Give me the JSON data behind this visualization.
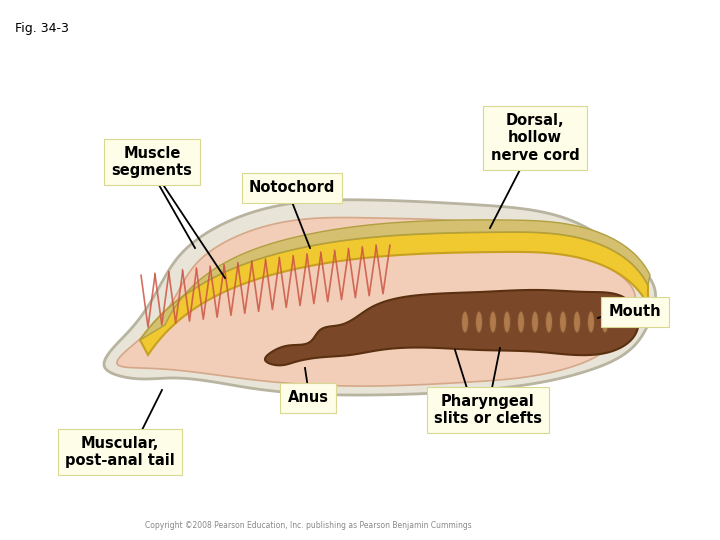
{
  "fig_label": "Fig. 34-3",
  "background_color": "#ffffff",
  "outer_body_fill": "#e8e4d8",
  "outer_body_edge": "#b8b4a0",
  "muscle_fill": "#f2cdb8",
  "muscle_edge": "#d4a888",
  "notochord_fill": "#f0c830",
  "notochord_edge": "#c8a020",
  "nerve_cord_fill": "#d4c070",
  "nerve_cord_edge": "#b0a040",
  "digestive_fill": "#7a4828",
  "digestive_edge": "#5a3010",
  "gill_slit_fill": "#c09060",
  "gill_slit_edge": "#8a5030",
  "muscle_line_color": "#cc5544",
  "labels": {
    "muscle_segments": "Muscle\nsegments",
    "notochord": "Notochord",
    "dorsal_nerve": "Dorsal,\nhollow\nnerve cord",
    "mouth": "Mouth",
    "anus": "Anus",
    "pharyngeal": "Pharyngeal\nslits or clefts",
    "muscular_tail": "Muscular,\npost-anal tail"
  },
  "label_box_color": "#fefee8",
  "label_box_edge": "#d8d890",
  "copyright_text": "Copyright ©2008 Pearson Education, Inc. publishing as Pearson Benjamin Cummings"
}
